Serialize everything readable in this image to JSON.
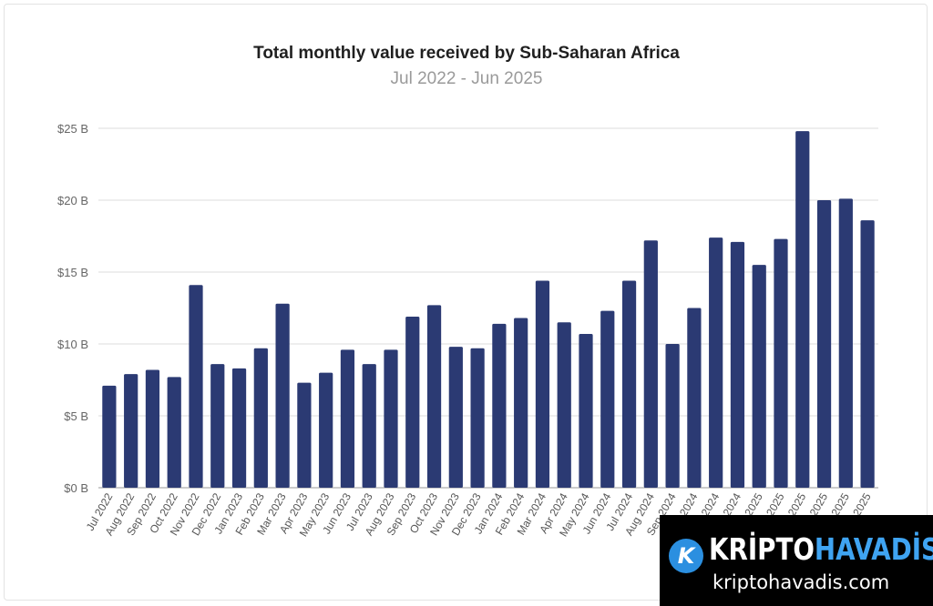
{
  "chart_data": {
    "type": "bar",
    "title": "Total monthly value received by Sub-Saharan Africa",
    "subtitle": "Jul 2022 - Jun 2025",
    "xlabel": "",
    "ylabel": "",
    "ylim": [
      0,
      25
    ],
    "yticks": [
      0,
      5,
      10,
      15,
      20,
      25
    ],
    "ytick_labels": [
      "$0 B",
      "$5 B",
      "$10 B",
      "$15 B",
      "$20 B",
      "$25 B"
    ],
    "grid": true,
    "bar_color": "#2b3a73",
    "categories": [
      "Jul 2022",
      "Aug 2022",
      "Sep 2022",
      "Oct 2022",
      "Nov 2022",
      "Dec 2022",
      "Jan 2023",
      "Feb 2023",
      "Mar 2023",
      "Apr 2023",
      "May 2023",
      "Jun 2023",
      "Jul 2023",
      "Aug 2023",
      "Sep 2023",
      "Oct 2023",
      "Nov 2023",
      "Dec 2023",
      "Jan 2024",
      "Feb 2024",
      "Mar 2024",
      "Apr 2024",
      "May 2024",
      "Jun 2024",
      "Jul 2024",
      "Aug 2024",
      "Sep 2024",
      "Oct 2024",
      "Nov 2024",
      "Dec 2024",
      "Jan 2025",
      "Feb 2025",
      "Mar 2025",
      "Apr 2025",
      "May 2025",
      "Jun 2025"
    ],
    "values": [
      7.1,
      7.9,
      8.2,
      7.7,
      14.1,
      8.6,
      8.3,
      9.7,
      12.8,
      7.3,
      8.0,
      9.6,
      8.6,
      9.6,
      11.9,
      12.7,
      9.8,
      9.7,
      11.4,
      11.8,
      14.4,
      11.5,
      10.7,
      12.3,
      14.4,
      17.2,
      10.0,
      12.5,
      17.4,
      17.1,
      15.5,
      17.3,
      24.8,
      20.0,
      20.1,
      18.6
    ]
  },
  "watermark": {
    "brand_part1": "KRİPTO",
    "brand_part2": "HAVADİS",
    "url": "kriptohavadis.com",
    "logo_letter": "K"
  }
}
